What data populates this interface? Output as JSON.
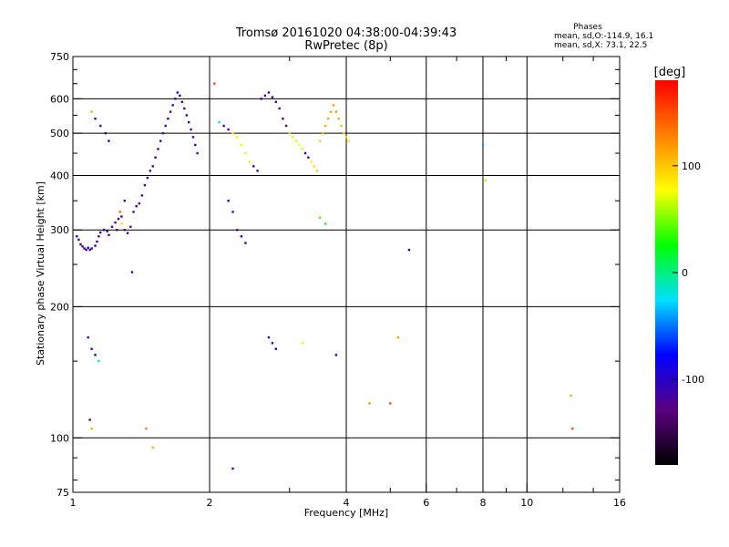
{
  "chart_data": {
    "type": "scatter",
    "title": "Tromsø 20161020 04:38:00-04:39:43",
    "subtitle": "RwPretec (8p)",
    "xlabel": "Frequency [MHz]",
    "ylabel": "Stationary phase Virtual Height [km]",
    "x_scale": "log",
    "y_scale": "log",
    "xlim": [
      1,
      16
    ],
    "ylim": [
      75,
      750
    ],
    "x_ticks": [
      1,
      2,
      4,
      6,
      8,
      10,
      16
    ],
    "y_ticks": [
      75,
      100,
      200,
      300,
      400,
      500,
      600,
      750
    ],
    "x_grid": [
      2,
      4,
      6,
      8,
      10
    ],
    "y_grid": [
      100,
      200,
      300,
      400,
      500,
      600
    ],
    "stats": {
      "heading": "Phases",
      "line_o": "mean, sd,O:-114.9, 16.1",
      "line_x": "mean, sd,X:  73.1, 22.5"
    },
    "colorbar": {
      "label": "[deg]",
      "range": [
        -180,
        180
      ],
      "ticks": [
        100,
        0,
        -100
      ],
      "stops": [
        "#000000",
        "#5a0080",
        "#0000ff",
        "#00e0ff",
        "#00ff00",
        "#ffff00",
        "#ff8000",
        "#ff0000"
      ]
    },
    "points": [
      [
        1.02,
        290,
        -115
      ],
      [
        1.03,
        285,
        -118
      ],
      [
        1.04,
        278,
        -100
      ],
      [
        1.05,
        275,
        -112
      ],
      [
        1.06,
        272,
        -95
      ],
      [
        1.07,
        270,
        -110
      ],
      [
        1.08,
        273,
        -105
      ],
      [
        1.09,
        270,
        -120
      ],
      [
        1.1,
        272,
        -98
      ],
      [
        1.12,
        276,
        -115
      ],
      [
        1.13,
        282,
        -108
      ],
      [
        1.14,
        290,
        -125
      ],
      [
        1.15,
        296,
        -110
      ],
      [
        1.17,
        300,
        -118
      ],
      [
        1.19,
        298,
        -105
      ],
      [
        1.2,
        292,
        -112
      ],
      [
        1.22,
        305,
        -130
      ],
      [
        1.24,
        312,
        -115
      ],
      [
        1.26,
        318,
        -120
      ],
      [
        1.28,
        322,
        -110
      ],
      [
        1.3,
        300,
        -125
      ],
      [
        1.32,
        295,
        -115
      ],
      [
        1.34,
        305,
        -118
      ],
      [
        1.36,
        330,
        -122
      ],
      [
        1.38,
        340,
        -110
      ],
      [
        1.4,
        345,
        -128
      ],
      [
        1.42,
        360,
        -115
      ],
      [
        1.44,
        380,
        -120
      ],
      [
        1.46,
        395,
        -110
      ],
      [
        1.48,
        410,
        -125
      ],
      [
        1.5,
        420,
        -118
      ],
      [
        1.52,
        440,
        -112
      ],
      [
        1.54,
        460,
        -120
      ],
      [
        1.56,
        480,
        -115
      ],
      [
        1.58,
        500,
        -122
      ],
      [
        1.6,
        520,
        -110
      ],
      [
        1.62,
        540,
        -118
      ],
      [
        1.64,
        560,
        -125
      ],
      [
        1.66,
        580,
        -112
      ],
      [
        1.68,
        600,
        -120
      ],
      [
        1.7,
        620,
        -115
      ],
      [
        1.72,
        610,
        -110
      ],
      [
        1.74,
        590,
        -118
      ],
      [
        1.76,
        570,
        -122
      ],
      [
        1.78,
        550,
        -115
      ],
      [
        1.8,
        530,
        -110
      ],
      [
        1.82,
        510,
        -125
      ],
      [
        1.84,
        490,
        -118
      ],
      [
        1.86,
        470,
        -112
      ],
      [
        1.88,
        450,
        -120
      ],
      [
        1.1,
        560,
        110
      ],
      [
        1.12,
        540,
        -120
      ],
      [
        1.15,
        520,
        -115
      ],
      [
        1.18,
        500,
        -110
      ],
      [
        1.2,
        480,
        -100
      ],
      [
        1.25,
        300,
        -120
      ],
      [
        1.27,
        330,
        140
      ],
      [
        1.28,
        310,
        90
      ],
      [
        1.3,
        350,
        -110
      ],
      [
        1.35,
        240,
        -115
      ],
      [
        2.1,
        530,
        -10
      ],
      [
        2.15,
        520,
        -120
      ],
      [
        2.2,
        510,
        -115
      ],
      [
        2.25,
        500,
        80
      ],
      [
        2.3,
        490,
        75
      ],
      [
        2.35,
        470,
        70
      ],
      [
        2.4,
        450,
        68
      ],
      [
        2.45,
        430,
        72
      ],
      [
        2.5,
        420,
        -110
      ],
      [
        2.55,
        410,
        -118
      ],
      [
        2.6,
        600,
        -120
      ],
      [
        2.65,
        610,
        -115
      ],
      [
        2.7,
        620,
        -110
      ],
      [
        2.75,
        605,
        -122
      ],
      [
        2.8,
        590,
        -118
      ],
      [
        2.85,
        570,
        -115
      ],
      [
        2.9,
        540,
        -120
      ],
      [
        2.95,
        520,
        -110
      ],
      [
        3.0,
        500,
        60
      ],
      [
        3.05,
        490,
        65
      ],
      [
        3.1,
        480,
        70
      ],
      [
        3.15,
        470,
        75
      ],
      [
        3.2,
        460,
        80
      ],
      [
        3.25,
        450,
        -110
      ],
      [
        3.3,
        440,
        -120
      ],
      [
        3.35,
        430,
        85
      ],
      [
        3.4,
        420,
        90
      ],
      [
        3.45,
        410,
        95
      ],
      [
        3.5,
        480,
        100
      ],
      [
        3.55,
        500,
        105
      ],
      [
        3.6,
        520,
        110
      ],
      [
        3.65,
        540,
        112
      ],
      [
        3.7,
        560,
        115
      ],
      [
        3.75,
        580,
        118
      ],
      [
        3.8,
        560,
        120
      ],
      [
        3.85,
        540,
        110
      ],
      [
        3.9,
        520,
        105
      ],
      [
        3.95,
        500,
        100
      ],
      [
        4.0,
        490,
        95
      ],
      [
        4.05,
        480,
        90
      ],
      [
        2.2,
        350,
        -120
      ],
      [
        2.25,
        330,
        -115
      ],
      [
        2.3,
        300,
        -125
      ],
      [
        2.35,
        290,
        -110
      ],
      [
        2.4,
        280,
        -118
      ],
      [
        2.7,
        170,
        -110
      ],
      [
        2.75,
        165,
        -120
      ],
      [
        2.8,
        160,
        -90
      ],
      [
        3.2,
        165,
        70
      ],
      [
        3.8,
        155,
        -110
      ],
      [
        1.08,
        170,
        -120
      ],
      [
        1.1,
        160,
        -115
      ],
      [
        1.12,
        155,
        -110
      ],
      [
        1.14,
        150,
        -20
      ],
      [
        1.09,
        110,
        -120
      ],
      [
        1.1,
        105,
        110
      ],
      [
        1.45,
        105,
        130
      ],
      [
        1.5,
        95,
        110
      ],
      [
        2.25,
        85,
        -125
      ],
      [
        4.5,
        120,
        120
      ],
      [
        5.0,
        120,
        150
      ],
      [
        5.2,
        170,
        115
      ],
      [
        5.5,
        270,
        -100
      ],
      [
        8.0,
        470,
        -40
      ],
      [
        8.1,
        390,
        95
      ],
      [
        3.5,
        320,
        40
      ],
      [
        3.6,
        310,
        30
      ],
      [
        2.05,
        650,
        150
      ],
      [
        12.5,
        125,
        110
      ],
      [
        12.6,
        105,
        150
      ]
    ]
  }
}
